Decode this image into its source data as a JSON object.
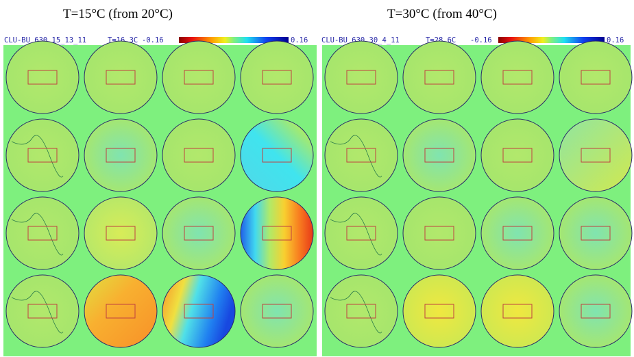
{
  "panels": [
    {
      "title": "T=15°C (from 20°C)",
      "run_id": "CLU-BU_630_15_13_11",
      "temperature": "T=16.3C",
      "colorbar_min": "-0.16",
      "colorbar_max": "0.16"
    },
    {
      "title": "T=30°C (from 40°C)",
      "run_id": "CLU-BU_630_30_4_11",
      "temperature": "T=28.6C",
      "colorbar_min": "-0.16",
      "colorbar_max": "0.16"
    }
  ]
}
